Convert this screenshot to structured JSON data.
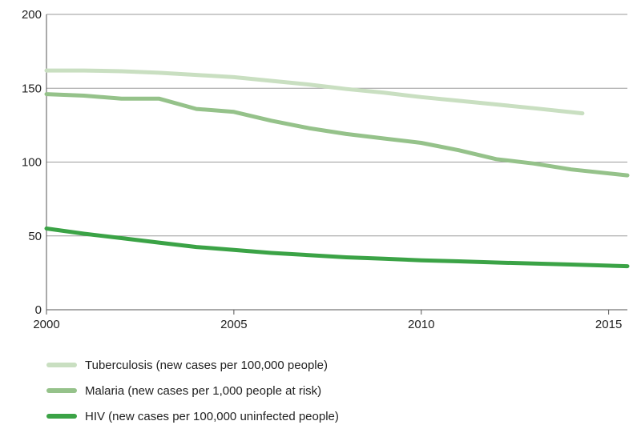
{
  "chart_data": {
    "type": "line",
    "title": "",
    "xlabel": "",
    "ylabel": "",
    "xlim": [
      2000,
      2015.5
    ],
    "ylim": [
      0,
      200
    ],
    "x_ticks": [
      2000,
      2005,
      2010,
      2015
    ],
    "y_ticks": [
      0,
      50,
      100,
      150,
      200
    ],
    "grid": true,
    "legend_position": "bottom-left",
    "series": [
      {
        "name": "Tuberculosis (new cases per 100,000 people)",
        "color": "#c9dfc1",
        "x": [
          2000,
          2001,
          2002,
          2003,
          2004,
          2005,
          2006,
          2007,
          2008,
          2009,
          2010,
          2011,
          2012,
          2013,
          2014.3
        ],
        "y": [
          162,
          162,
          161.5,
          160.5,
          159,
          157.5,
          155,
          152.5,
          149.5,
          147,
          144,
          141.5,
          139,
          136.5,
          133
        ]
      },
      {
        "name": "Malaria (new cases per 1,000 people at risk)",
        "color": "#95c28a",
        "x": [
          2000,
          2001,
          2002,
          2003,
          2004,
          2005,
          2006,
          2007,
          2008,
          2009,
          2010,
          2011,
          2012,
          2013,
          2014,
          2015.5
        ],
        "y": [
          146,
          145,
          143,
          143,
          136,
          134,
          128,
          123,
          119,
          116,
          113,
          108,
          102,
          99,
          95,
          91
        ]
      },
      {
        "name": "HIV (new cases per 100,000 uninfected people)",
        "color": "#3ba346",
        "x": [
          2000,
          2001,
          2002,
          2003,
          2004,
          2005,
          2006,
          2007,
          2008,
          2009,
          2010,
          2011,
          2012,
          2013,
          2014,
          2015.5
        ],
        "y": [
          55,
          51.5,
          48.5,
          45.5,
          42.5,
          40.5,
          38.5,
          37,
          35.5,
          34.5,
          33.5,
          32.8,
          32,
          31.3,
          30.6,
          29.5
        ]
      }
    ]
  }
}
